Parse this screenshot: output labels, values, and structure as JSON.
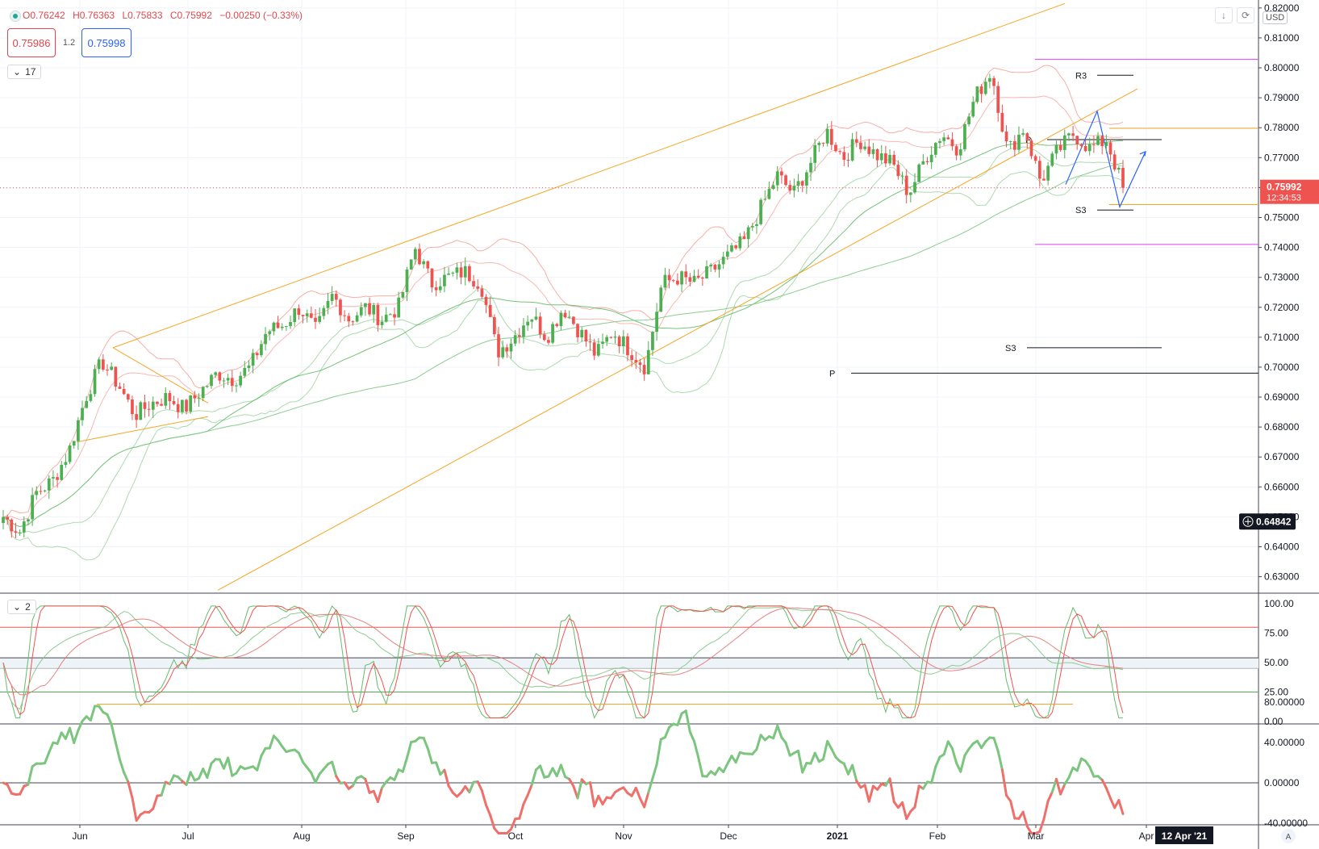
{
  "header": {
    "open": "O0.76242",
    "high": "H0.76363",
    "low": "L0.75833",
    "close": "C0.75992",
    "change": "−0.00250 (−0.33%)",
    "sell_price": "0.75986",
    "spread": "1.2",
    "buy_price": "0.75998",
    "main_collapse": "17",
    "osc_collapse": "2",
    "currency": "USD",
    "scroll_icon": "down-arrow-icon",
    "reset_icon": "reset-icon"
  },
  "price_badges": {
    "last_price": "0.75992",
    "countdown": "12:34:53",
    "cursor_price": "0.64842"
  },
  "time_badge": "12 Apr '21",
  "axis_mode_button": "A",
  "chart_data": [
    {
      "type": "candlestick",
      "y_ticks": [
        "0.82000",
        "0.81000",
        "0.80000",
        "0.79000",
        "0.78000",
        "0.77000",
        "0.76000",
        "0.75000",
        "0.74000",
        "0.73000",
        "0.72000",
        "0.71000",
        "0.70000",
        "0.69000",
        "0.68000",
        "0.67000",
        "0.66000",
        "0.65000",
        "0.64000",
        "0.63000"
      ],
      "x_ticks": [
        "Jun",
        "Jul",
        "Aug",
        "Sep",
        "Oct",
        "Nov",
        "Dec",
        "2021",
        "Feb",
        "Mar",
        "Apr"
      ],
      "ylim": [
        0.625,
        0.82
      ],
      "pivot_labels": [
        {
          "text": "R3",
          "price": 0.7975
        },
        {
          "text": "P",
          "price": 0.776
        },
        {
          "text": "S3",
          "price": 0.7525
        },
        {
          "text": "S3",
          "price": 0.7065
        },
        {
          "text": "P",
          "price": 0.698
        }
      ],
      "price_path": [
        0.65,
        0.645,
        0.658,
        0.662,
        0.672,
        0.69,
        0.702,
        0.694,
        0.684,
        0.688,
        0.69,
        0.686,
        0.692,
        0.698,
        0.696,
        0.7,
        0.712,
        0.714,
        0.72,
        0.712,
        0.724,
        0.716,
        0.72,
        0.716,
        0.72,
        0.74,
        0.728,
        0.73,
        0.732,
        0.728,
        0.705,
        0.71,
        0.718,
        0.71,
        0.72,
        0.712,
        0.704,
        0.712,
        0.706,
        0.7,
        0.728,
        0.73,
        0.728,
        0.732,
        0.737,
        0.742,
        0.753,
        0.764,
        0.758,
        0.768,
        0.779,
        0.77,
        0.776,
        0.771,
        0.768,
        0.758,
        0.77,
        0.778,
        0.773,
        0.79,
        0.799,
        0.772,
        0.78,
        0.762,
        0.772,
        0.778,
        0.773,
        0.776,
        0.76
      ]
    },
    {
      "type": "line",
      "name": "stochastic",
      "y_ticks": [
        "100.00",
        "75.00",
        "50.00",
        "25.00",
        "0.00"
      ],
      "ylim": [
        0,
        100
      ]
    },
    {
      "type": "line",
      "name": "momentum",
      "y_ticks": [
        "80.00000",
        "40.00000",
        "0.00000",
        "-40.00000"
      ],
      "ylim": [
        -60,
        85
      ]
    }
  ]
}
